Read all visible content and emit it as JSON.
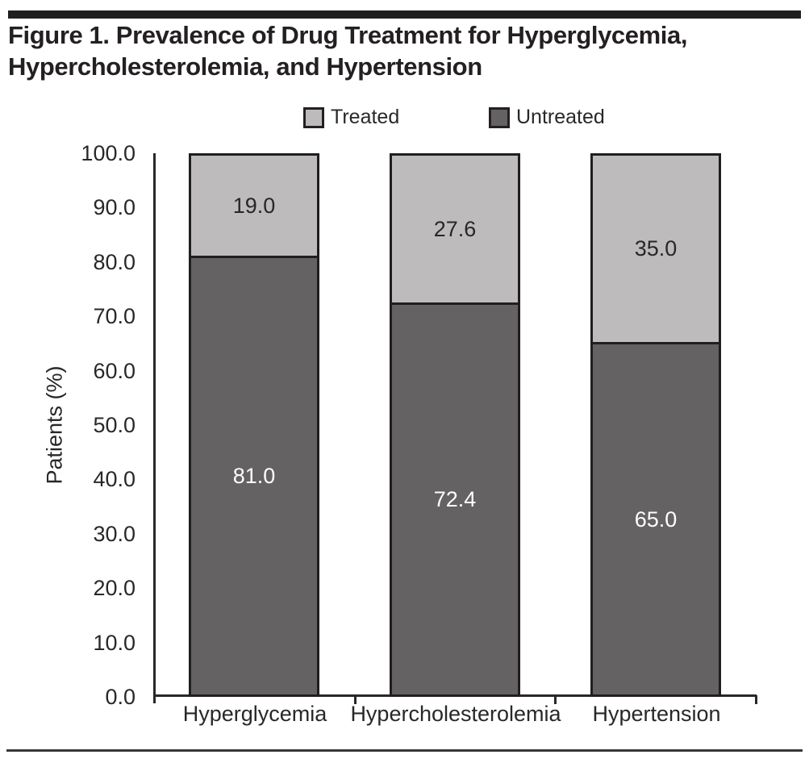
{
  "figure": {
    "title_line1": "Figure 1. Prevalence of Drug Treatment for Hyperglycemia,",
    "title_line2": "Hypercholesterolemia, and Hypertension"
  },
  "chart_data": {
    "type": "bar",
    "stacked": true,
    "percent_stacked": true,
    "title": "Figure 1. Prevalence of Drug Treatment for Hyperglycemia, Hypercholesterolemia, and Hypertension",
    "categories": [
      "Hyperglycemia",
      "Hypercholesterolemia",
      "Hypertension"
    ],
    "series": [
      {
        "name": "Treated",
        "values": [
          19.0,
          27.6,
          35.0
        ],
        "color": "#bdbbbc"
      },
      {
        "name": "Untreated",
        "values": [
          81.0,
          72.4,
          65.0
        ],
        "color": "#656263"
      }
    ],
    "value_labels": {
      "treated": [
        "19.0",
        "27.6",
        "35.0"
      ],
      "untreated": [
        "81.0",
        "72.4",
        "65.0"
      ]
    },
    "xlabel": "",
    "ylabel": "Patients (%)",
    "ylim": [
      0,
      100
    ],
    "ytick_step": 10,
    "yticks": [
      "0.0",
      "10.0",
      "20.0",
      "30.0",
      "40.0",
      "50.0",
      "60.0",
      "70.0",
      "80.0",
      "90.0",
      "100.0"
    ],
    "legend": [
      "Treated",
      "Untreated"
    ],
    "legend_position": "top",
    "grid": false
  },
  "colors": {
    "treated_fill": "#bdbbbc",
    "untreated_fill": "#656263",
    "ink": "#242021",
    "untreated_label_text": "#ffffff"
  }
}
